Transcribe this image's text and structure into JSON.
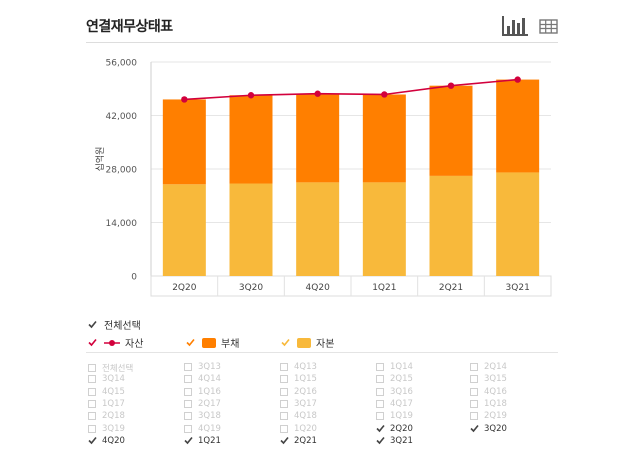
{
  "title": "연결재무상태표",
  "icons": {
    "bar_view": "bar-chart-icon",
    "table_view": "table-icon"
  },
  "colors": {
    "asset": "#d2003c",
    "liability": "#ff7f00",
    "equity": "#f8b93b",
    "check_dark": "#444444",
    "check_red": "#d2003c",
    "check_orange": "#ff7f00",
    "check_yellow": "#f8b93b"
  },
  "chart_data": {
    "type": "bar",
    "stacked": true,
    "categories": [
      "2Q20",
      "3Q20",
      "4Q20",
      "1Q21",
      "2Q21",
      "3Q21"
    ],
    "series": [
      {
        "name": "자본",
        "type": "bar",
        "values": [
          24000,
          24200,
          24500,
          24500,
          26200,
          27100
        ]
      },
      {
        "name": "부채",
        "type": "bar",
        "values": [
          22200,
          23100,
          23200,
          23000,
          23600,
          24300
        ]
      },
      {
        "name": "자산",
        "type": "line",
        "values": [
          46200,
          47300,
          47700,
          47500,
          49800,
          51400
        ]
      }
    ],
    "ylabel": "십억원",
    "ylim": [
      0,
      56000
    ],
    "yticks": [
      "0",
      "14,000",
      "28,000",
      "42,000",
      "56,000"
    ],
    "ytick_values": [
      0,
      14000,
      28000,
      42000,
      56000
    ],
    "grid": true
  },
  "legend": {
    "select_all": "전체선택",
    "items": [
      {
        "label": "자산"
      },
      {
        "label": "부채"
      },
      {
        "label": "자본"
      }
    ]
  },
  "periods": {
    "items": [
      {
        "label": "전체선택",
        "state": "disabled"
      },
      {
        "label": "3Q13",
        "state": "disabled"
      },
      {
        "label": "4Q13",
        "state": "disabled"
      },
      {
        "label": "1Q14",
        "state": "disabled"
      },
      {
        "label": "2Q14",
        "state": "disabled"
      },
      {
        "label": "3Q14",
        "state": "disabled"
      },
      {
        "label": "4Q14",
        "state": "disabled"
      },
      {
        "label": "1Q15",
        "state": "disabled"
      },
      {
        "label": "2Q15",
        "state": "disabled"
      },
      {
        "label": "3Q15",
        "state": "disabled"
      },
      {
        "label": "4Q15",
        "state": "disabled"
      },
      {
        "label": "1Q16",
        "state": "disabled"
      },
      {
        "label": "2Q16",
        "state": "disabled"
      },
      {
        "label": "3Q16",
        "state": "disabled"
      },
      {
        "label": "4Q16",
        "state": "disabled"
      },
      {
        "label": "1Q17",
        "state": "disabled"
      },
      {
        "label": "2Q17",
        "state": "disabled"
      },
      {
        "label": "3Q17",
        "state": "disabled"
      },
      {
        "label": "4Q17",
        "state": "disabled"
      },
      {
        "label": "1Q18",
        "state": "disabled"
      },
      {
        "label": "2Q18",
        "state": "disabled"
      },
      {
        "label": "3Q18",
        "state": "disabled"
      },
      {
        "label": "4Q18",
        "state": "disabled"
      },
      {
        "label": "1Q19",
        "state": "disabled"
      },
      {
        "label": "2Q19",
        "state": "disabled"
      },
      {
        "label": "3Q19",
        "state": "disabled"
      },
      {
        "label": "4Q19",
        "state": "disabled"
      },
      {
        "label": "1Q20",
        "state": "disabled"
      },
      {
        "label": "2Q20",
        "state": "checked"
      },
      {
        "label": "3Q20",
        "state": "checked"
      },
      {
        "label": "4Q20",
        "state": "checked"
      },
      {
        "label": "1Q21",
        "state": "checked"
      },
      {
        "label": "2Q21",
        "state": "checked"
      },
      {
        "label": "3Q21",
        "state": "checked"
      }
    ]
  }
}
